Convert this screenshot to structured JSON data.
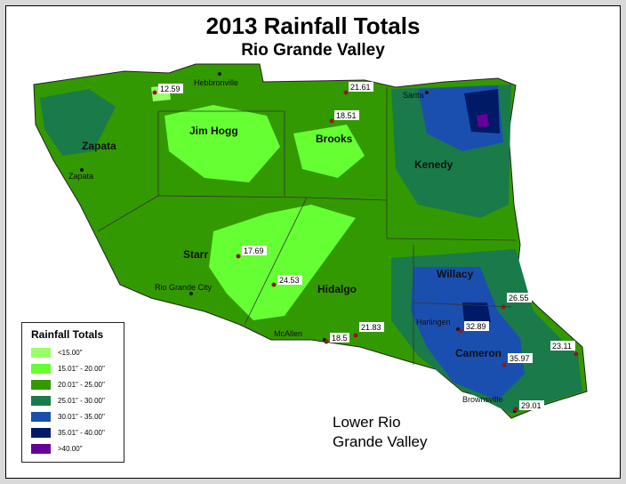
{
  "title": "2013 Rainfall Totals",
  "subtitle": "Rio Grande Valley",
  "region_label": [
    "Lower Rio",
    "Grande Valley"
  ],
  "legend": {
    "title": "Rainfall Totals",
    "items": [
      {
        "label": "<15.00\"",
        "color": "#99ff66"
      },
      {
        "label": "15.01\" - 20.00\"",
        "color": "#66ff33"
      },
      {
        "label": "20.01\" - 25.00\"",
        "color": "#339900"
      },
      {
        "label": "25.01\" - 30.00\"",
        "color": "#1a7a4a"
      },
      {
        "label": "30.01\" - 35.00\"",
        "color": "#1a4fb0"
      },
      {
        "label": "35.01\" - 40.00\"",
        "color": "#001a66"
      },
      {
        "label": ">40.00\"",
        "color": "#660099"
      }
    ]
  },
  "counties": [
    "Zapata",
    "Jim Hogg",
    "Brooks",
    "Kenedy",
    "Starr",
    "Hidalgo",
    "Willacy",
    "Cameron"
  ],
  "cities": [
    "Hebbronville",
    "Sarita",
    "Zapata",
    "Rio Grande City",
    "McAllen",
    "Harlingen",
    "Brownsville"
  ],
  "values": [
    "12.59",
    "21.61",
    "18.51",
    "17.69",
    "24.53",
    "21.83",
    "18.5",
    "32.89",
    "26.55",
    "35.97",
    "23.11",
    "29.01"
  ]
}
